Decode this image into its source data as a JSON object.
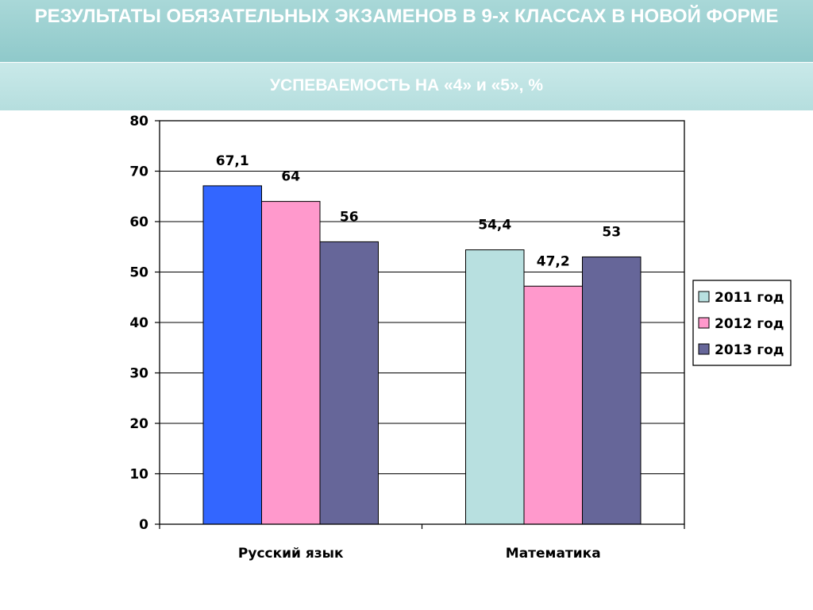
{
  "header": {
    "title": "РЕЗУЛЬТАТЫ ОБЯЗАТЕЛЬНЫХ ЭКЗАМЕНОВ В 9-х КЛАССАХ В НОВОЙ ФОРМЕ",
    "subtitle": "УСПЕВАЕМОСТЬ НА «4» и «5», %"
  },
  "chart_data": {
    "type": "bar",
    "categories": [
      "Русский язык",
      "Математика"
    ],
    "series": [
      {
        "name": "2011 год",
        "values": [
          67.1,
          54.4
        ],
        "value_labels": [
          "67,1",
          "54,4"
        ],
        "legend_color": "#b8e0e0"
      },
      {
        "name": "2012 год",
        "values": [
          64,
          47.2
        ],
        "value_labels": [
          "64",
          "47,2"
        ],
        "legend_color": "#ff99cc"
      },
      {
        "name": "2013 год",
        "values": [
          56,
          53
        ],
        "value_labels": [
          "56",
          "53"
        ],
        "legend_color": "#666699"
      }
    ],
    "bar_colors": [
      [
        "#3366ff",
        "#b8e0e0"
      ],
      [
        "#ff99cc",
        "#ff99cc"
      ],
      [
        "#666699",
        "#666699"
      ]
    ],
    "ylim": [
      0,
      80
    ],
    "yticks": [
      0,
      10,
      20,
      30,
      40,
      50,
      60,
      70,
      80
    ],
    "grid": true,
    "legend_position": "right"
  }
}
